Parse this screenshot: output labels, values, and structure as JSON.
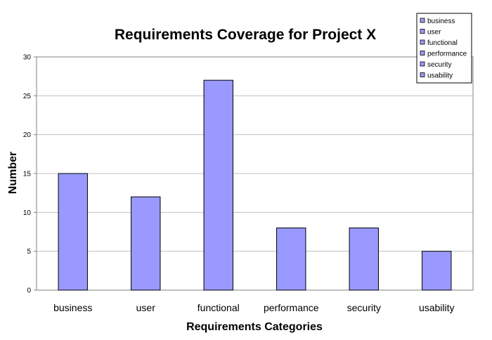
{
  "chart_data": {
    "type": "bar",
    "title": "Requirements Coverage for Project X",
    "xlabel": "Requirements Categories",
    "ylabel": "Number",
    "categories": [
      "business",
      "user",
      "functional",
      "performance",
      "security",
      "usability"
    ],
    "values": [
      15,
      12,
      27,
      8,
      8,
      5
    ],
    "ylim": [
      0,
      30
    ],
    "yticks": [
      0,
      5,
      10,
      15,
      20,
      25,
      30
    ],
    "grid": true,
    "legend_position": "top-right",
    "legend_entries": [
      "business",
      "user",
      "functional",
      "performance",
      "security",
      "usability"
    ],
    "colors": {
      "bar_fill": "#9999ff",
      "bar_stroke": "#000000",
      "grid": "#c0c0c0",
      "axis": "#808080"
    }
  }
}
